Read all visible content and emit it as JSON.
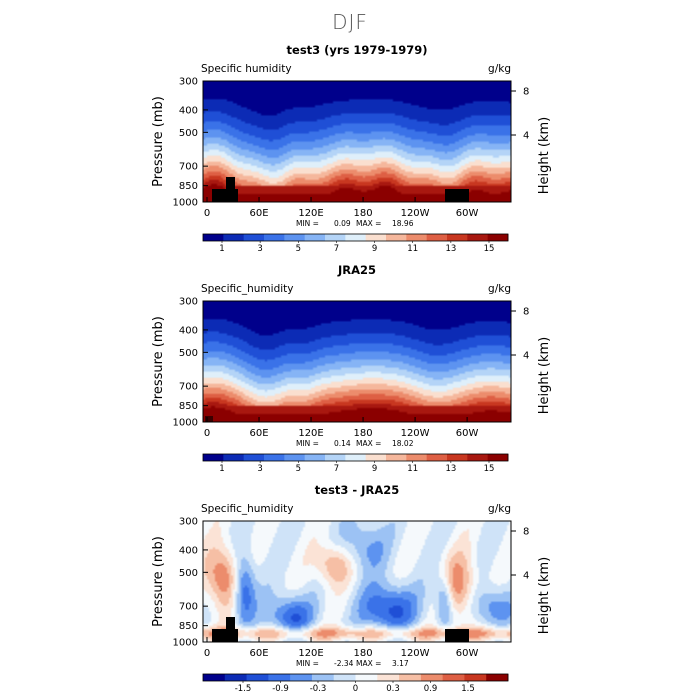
{
  "page": {
    "title": "DJF"
  },
  "chart_data": [
    {
      "type": "heatmap",
      "title": "test3 (yrs 1979-1979)",
      "variable_label": "Specific humidity",
      "units": "g/kg",
      "ylabel": "Pressure (mb)",
      "ylabel_right": "Height (km)",
      "x_ticks": [
        "0",
        "60E",
        "120E",
        "180",
        "120W",
        "60W"
      ],
      "y_ticks": [
        "300",
        "400",
        "500",
        "700",
        "850",
        "1000"
      ],
      "y_right_ticks": [
        "8",
        "4"
      ],
      "ylim": [
        1000,
        300
      ],
      "stats": {
        "min_label": "MIN =",
        "min": "0.09",
        "max_label": "MAX =",
        "max": "18.96"
      },
      "colorbar": {
        "ticks": [
          "1",
          "3",
          "5",
          "7",
          "9",
          "11",
          "13",
          "15"
        ],
        "colors": [
          "#00008b",
          "#0c2bb5",
          "#1f4fd6",
          "#3a72e8",
          "#5d93f0",
          "#86b4f5",
          "#b4d4f7",
          "#dfeffa",
          "#fadfcf",
          "#f5b79c",
          "#ec8c6c",
          "#de5f44",
          "#c83720",
          "#a81810",
          "#8b0000"
        ]
      }
    },
    {
      "type": "heatmap",
      "title": "JRA25",
      "variable_label": "Specific_humidity",
      "units": "g/kg",
      "ylabel": "Pressure (mb)",
      "ylabel_right": "Height (km)",
      "x_ticks": [
        "0",
        "60E",
        "120E",
        "180",
        "120W",
        "60W"
      ],
      "y_ticks": [
        "300",
        "400",
        "500",
        "700",
        "850",
        "1000"
      ],
      "y_right_ticks": [
        "8",
        "4"
      ],
      "ylim": [
        1000,
        300
      ],
      "stats": {
        "min_label": "MIN =",
        "min": "0.14",
        "max_label": "MAX =",
        "max": "18.02"
      },
      "colorbar": {
        "ticks": [
          "1",
          "3",
          "5",
          "7",
          "9",
          "11",
          "13",
          "15"
        ],
        "colors": [
          "#00008b",
          "#0c2bb5",
          "#1f4fd6",
          "#3a72e8",
          "#5d93f0",
          "#86b4f5",
          "#b4d4f7",
          "#dfeffa",
          "#fadfcf",
          "#f5b79c",
          "#ec8c6c",
          "#de5f44",
          "#c83720",
          "#a81810",
          "#8b0000"
        ]
      }
    },
    {
      "type": "heatmap",
      "title": "test3 - JRA25",
      "variable_label": "Specific_humidity",
      "units": "g/kg",
      "ylabel": "Pressure (mb)",
      "ylabel_right": "Height (km)",
      "x_ticks": [
        "0",
        "60E",
        "120E",
        "180",
        "120W",
        "60W"
      ],
      "y_ticks": [
        "300",
        "400",
        "500",
        "700",
        "850",
        "1000"
      ],
      "y_right_ticks": [
        "8",
        "4"
      ],
      "ylim": [
        1000,
        300
      ],
      "stats": {
        "min_label": "MIN =",
        "min": "-2.34",
        "max_label": "MAX =",
        "max": "3.17"
      },
      "colorbar": {
        "ticks": [
          "-1.5",
          "-0.9",
          "-0.3",
          "0",
          "0.3",
          "0.9",
          "1.5"
        ],
        "colors": [
          "#00008b",
          "#0c2bb5",
          "#1f4fd6",
          "#3a72e8",
          "#5d93f0",
          "#9cc2f4",
          "#cfe3f8",
          "#f5f9fc",
          "#fbe3d6",
          "#f6bfa5",
          "#ec8c6c",
          "#de5f44",
          "#c83720",
          "#8b0000"
        ]
      }
    }
  ]
}
